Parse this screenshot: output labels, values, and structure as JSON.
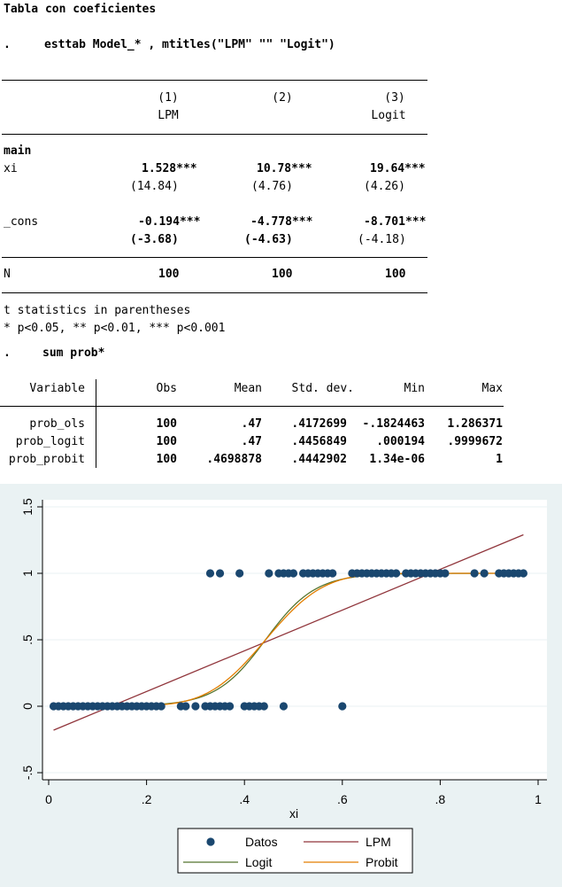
{
  "title": "Tabla con coeficientes",
  "cmd_dot": ".",
  "esttab_cmd": "esttab Model_* , mtitles(\"LPM\" \"\" \"Logit\")",
  "esttab": {
    "colnums": [
      "(1)",
      "(2)",
      "(3)"
    ],
    "mtitles": [
      "LPM",
      "",
      "Logit"
    ],
    "section": "main",
    "rows": [
      {
        "label": "xi",
        "coef": [
          "1.528***",
          "10.78***",
          "19.64***"
        ],
        "t": [
          "(14.84)",
          "(4.76)",
          "(4.26)"
        ]
      },
      {
        "label": "_cons",
        "coef": [
          "-0.194***",
          "-4.778***",
          "-8.701***"
        ],
        "t": [
          "(-3.68)",
          "(-4.63)",
          "(-4.18)"
        ]
      }
    ],
    "n_label": "N",
    "n_values": [
      "100",
      "100",
      "100"
    ],
    "note1": "t statistics in parentheses",
    "note2": "* p<0.05, ** p<0.01, *** p<0.001"
  },
  "sum_cmd": "sum prob*",
  "sumtable": {
    "headers": [
      "Variable",
      "Obs",
      "Mean",
      "Std. dev.",
      "Min",
      "Max"
    ],
    "rows": [
      [
        "prob_ols",
        "100",
        ".47",
        ".4172699",
        "-.1824463",
        "1.286371"
      ],
      [
        "prob_logit",
        "100",
        ".47",
        ".4456849",
        ".000194",
        ".9999672"
      ],
      [
        "prob_probit",
        "100",
        ".4698878",
        ".4442902",
        "1.34e-06",
        "1"
      ]
    ]
  },
  "chart_data": {
    "type": "scatter",
    "xlabel": "xi",
    "ylabel": "",
    "xlim": [
      0,
      1
    ],
    "ylim": [
      -0.5,
      1.5
    ],
    "xticks": [
      0,
      0.2,
      0.4,
      0.6,
      0.8,
      1
    ],
    "xtick_labels": [
      "0",
      ".2",
      ".4",
      ".6",
      ".8",
      "1"
    ],
    "yticks": [
      -0.5,
      0,
      0.5,
      1,
      1.5
    ],
    "ytick_labels": [
      "-.5",
      "0",
      ".5",
      "1",
      "1.5"
    ],
    "grid": true,
    "legend_position": "bottom",
    "series": [
      {
        "name": "Datos",
        "kind": "points",
        "color": "#1a476f",
        "points_y0": [
          0.01,
          0.02,
          0.03,
          0.04,
          0.05,
          0.06,
          0.07,
          0.08,
          0.09,
          0.1,
          0.11,
          0.12,
          0.13,
          0.14,
          0.15,
          0.16,
          0.17,
          0.18,
          0.19,
          0.2,
          0.21,
          0.22,
          0.23,
          0.27,
          0.28,
          0.3,
          0.32,
          0.33,
          0.34,
          0.35,
          0.36,
          0.37,
          0.4,
          0.41,
          0.42,
          0.43,
          0.44,
          0.48,
          0.6
        ],
        "points_y1": [
          0.33,
          0.35,
          0.39,
          0.45,
          0.47,
          0.48,
          0.49,
          0.5,
          0.52,
          0.53,
          0.54,
          0.55,
          0.56,
          0.57,
          0.58,
          0.62,
          0.63,
          0.64,
          0.65,
          0.66,
          0.67,
          0.68,
          0.69,
          0.7,
          0.71,
          0.73,
          0.74,
          0.75,
          0.76,
          0.77,
          0.78,
          0.79,
          0.8,
          0.81,
          0.87,
          0.89,
          0.92,
          0.93,
          0.94,
          0.95,
          0.96,
          0.97
        ]
      },
      {
        "name": "LPM",
        "kind": "line",
        "color": "#90353b",
        "x": [
          0.01,
          0.97
        ],
        "y": [
          -0.18,
          1.29
        ]
      },
      {
        "name": "Logit",
        "kind": "logistic",
        "color": "#55752f",
        "intercept": -8.701,
        "slope": 19.64,
        "x_range": [
          0.01,
          0.97
        ]
      },
      {
        "name": "Probit",
        "kind": "probit",
        "color": "#e37e00",
        "intercept": -4.778,
        "slope": 10.78,
        "x_range": [
          0.01,
          0.97
        ]
      }
    ]
  }
}
